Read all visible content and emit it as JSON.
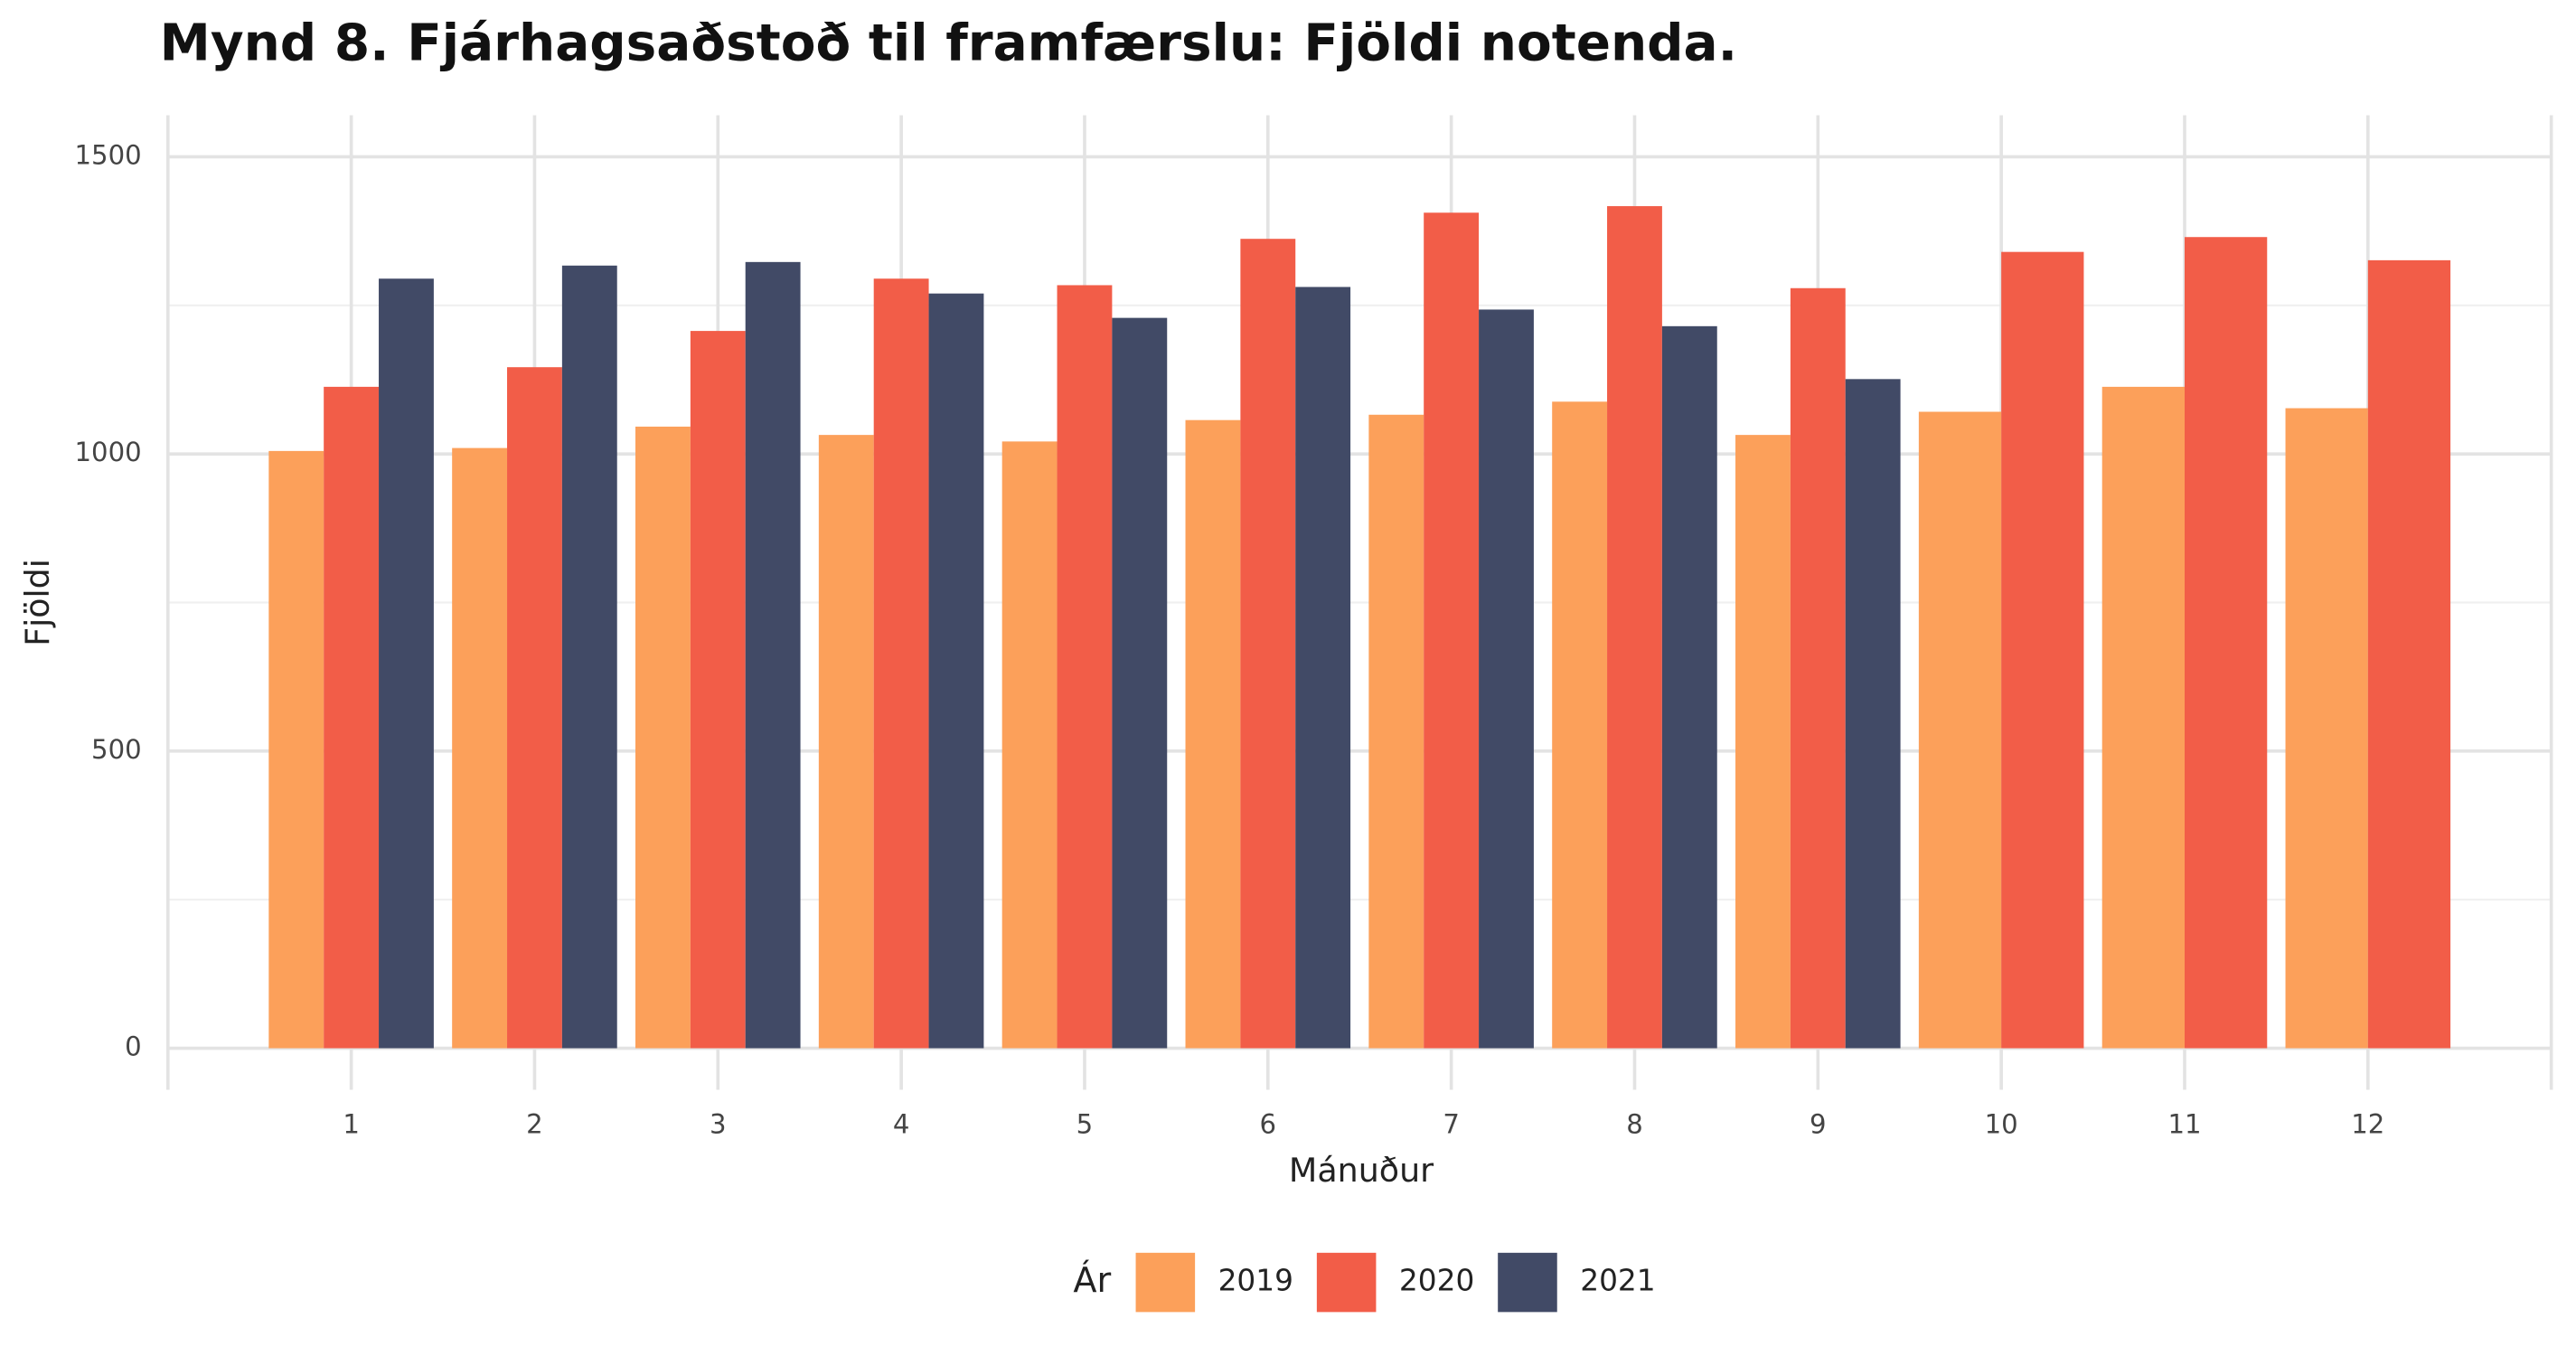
{
  "chart_data": {
    "type": "bar",
    "title": "Mynd 8. Fjárhagsaðstoð til framfærslu: Fjöldi notenda.",
    "x_label": "Mánuður",
    "y_label": "Fjöldi",
    "legend_title": "Ár",
    "legend_position": "bottom",
    "categories": [
      "1",
      "2",
      "3",
      "4",
      "5",
      "6",
      "7",
      "8",
      "9",
      "10",
      "11",
      "12"
    ],
    "series": [
      {
        "name": "2019",
        "color": "#fca05a",
        "values": [
          1005,
          1010,
          1046,
          1032,
          1021,
          1057,
          1066,
          1088,
          1032,
          1071,
          1113,
          1077
        ]
      },
      {
        "name": "2020",
        "color": "#f25d48",
        "values": [
          1113,
          1146,
          1207,
          1295,
          1284,
          1362,
          1406,
          1417,
          1279,
          1340,
          1365,
          1326
        ]
      },
      {
        "name": "2021",
        "color": "#414a66",
        "values": [
          1295,
          1317,
          1323,
          1270,
          1229,
          1281,
          1243,
          1215,
          1126,
          null,
          null,
          null
        ]
      }
    ],
    "ylim": [
      -70,
      1570
    ],
    "yticks": [
      0,
      500,
      1000,
      1500
    ],
    "yticks_minor": [
      250,
      750,
      1250
    ],
    "grid": true
  }
}
